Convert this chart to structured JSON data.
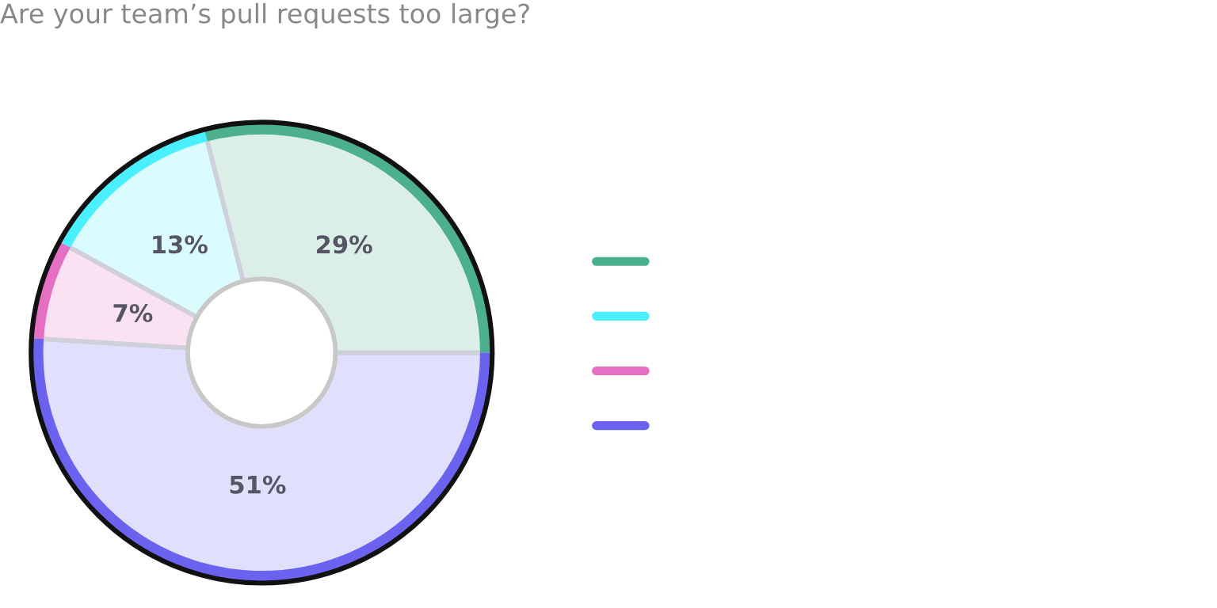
{
  "chart_data": {
    "type": "donut",
    "title": "Are your team’s pull requests too large?",
    "categories": [
      null,
      null,
      null,
      null
    ],
    "values": [
      29,
      13,
      7,
      51
    ],
    "value_labels": [
      "29%",
      "13%",
      "7%",
      "51%"
    ],
    "colors": [
      "#4caf8e",
      "#4af0ff",
      "#e46fc3",
      "#6b63f0"
    ]
  }
}
